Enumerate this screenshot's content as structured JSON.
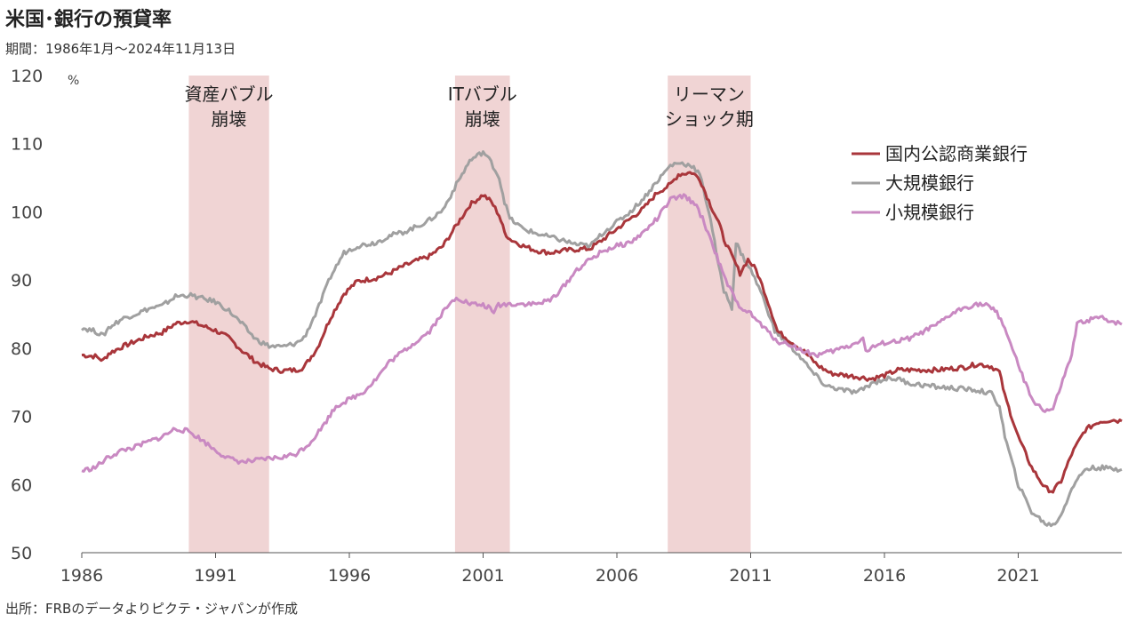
{
  "header": {
    "title": "米国･銀行の預貸率",
    "subtitle": "期間：1986年1月～2024年11月13日"
  },
  "footer": {
    "source": "出所：FRBのデータよりピクテ・ジャパンが作成"
  },
  "chart_data": {
    "type": "line",
    "title": "米国･銀行の預貸率",
    "ylabel": "%",
    "xlim": [
      1986.0,
      2024.87
    ],
    "ylim": [
      50,
      120
    ],
    "yticks": [
      50,
      60,
      70,
      80,
      90,
      100,
      110,
      120
    ],
    "xticks": [
      1986,
      1991,
      1996,
      2001,
      2006,
      2011,
      2016,
      2021
    ],
    "grid": false,
    "legend_position": "top-right",
    "shaded_periods": [
      {
        "label_lines": [
          "資産バブル",
          "崩壊"
        ],
        "start": 1990.0,
        "end": 1993.0,
        "color": "#f0d4d4"
      },
      {
        "label_lines": [
          "ITバブル",
          "崩壊"
        ],
        "start": 1999.95,
        "end": 2002.0,
        "color": "#f0d4d4"
      },
      {
        "label_lines": [
          "リーマン",
          "ショック期"
        ],
        "start": 2007.9,
        "end": 2011.0,
        "color": "#f0d4d4"
      }
    ],
    "series": [
      {
        "name": "国内公認商業銀行",
        "color": "#a9363b",
        "points": [
          [
            1986.0,
            79
          ],
          [
            1986.5,
            78.8
          ],
          [
            1986.8,
            78.2
          ],
          [
            1987.0,
            79.2
          ],
          [
            1987.5,
            80.2
          ],
          [
            1988.0,
            81
          ],
          [
            1988.5,
            81.8
          ],
          [
            1989.0,
            82.3
          ],
          [
            1989.5,
            83.6
          ],
          [
            1990.0,
            84
          ],
          [
            1990.5,
            83.3
          ],
          [
            1991.0,
            82.6
          ],
          [
            1991.5,
            81.5
          ],
          [
            1992.0,
            79.6
          ],
          [
            1992.5,
            78
          ],
          [
            1993.0,
            77
          ],
          [
            1993.5,
            76.7
          ],
          [
            1994.0,
            76.8
          ],
          [
            1994.3,
            77.2
          ],
          [
            1994.8,
            80
          ],
          [
            1995.3,
            84.5
          ],
          [
            1995.8,
            88
          ],
          [
            1996.3,
            89.8
          ],
          [
            1997.0,
            90.3
          ],
          [
            1997.5,
            91
          ],
          [
            1998.0,
            92
          ],
          [
            1998.5,
            92.8
          ],
          [
            1999.0,
            93.5
          ],
          [
            1999.5,
            95
          ],
          [
            2000.0,
            98
          ],
          [
            2000.5,
            101
          ],
          [
            2001.0,
            102.5
          ],
          [
            2001.3,
            101.5
          ],
          [
            2001.6,
            99.5
          ],
          [
            2001.8,
            97
          ],
          [
            2002.0,
            96
          ],
          [
            2002.5,
            95
          ],
          [
            2003.0,
            94.3
          ],
          [
            2003.5,
            94
          ],
          [
            2004.0,
            94.3
          ],
          [
            2004.5,
            94.5
          ],
          [
            2005.0,
            94.6
          ],
          [
            2005.5,
            96
          ],
          [
            2006.0,
            97.5
          ],
          [
            2006.5,
            99
          ],
          [
            2007.0,
            100.5
          ],
          [
            2007.5,
            102.8
          ],
          [
            2008.0,
            104
          ],
          [
            2008.3,
            105.5
          ],
          [
            2008.8,
            105.8
          ],
          [
            2009.1,
            104.8
          ],
          [
            2009.5,
            101
          ],
          [
            2009.8,
            98.5
          ],
          [
            2010.0,
            96
          ],
          [
            2010.3,
            93.5
          ],
          [
            2010.6,
            91
          ],
          [
            2010.9,
            93
          ],
          [
            2011.2,
            91.5
          ],
          [
            2011.5,
            88.5
          ],
          [
            2011.8,
            85
          ],
          [
            2012.0,
            82.5
          ],
          [
            2012.5,
            81
          ],
          [
            2013.0,
            79.5
          ],
          [
            2013.5,
            77.5
          ],
          [
            2014.0,
            76.3
          ],
          [
            2015.0,
            75.8
          ],
          [
            2015.5,
            75.5
          ],
          [
            2016.0,
            76
          ],
          [
            2016.5,
            76.8
          ],
          [
            2017.0,
            76.8
          ],
          [
            2018.0,
            76.8
          ],
          [
            2019.0,
            77.2
          ],
          [
            2019.5,
            77.7
          ],
          [
            2020.0,
            77.3
          ],
          [
            2020.3,
            76.5
          ],
          [
            2020.5,
            73
          ],
          [
            2021.0,
            67
          ],
          [
            2021.5,
            62.5
          ],
          [
            2022.0,
            59.5
          ],
          [
            2022.3,
            59
          ],
          [
            2022.6,
            60.5
          ],
          [
            2023.0,
            64.5
          ],
          [
            2023.5,
            68
          ],
          [
            2024.0,
            69.2
          ],
          [
            2024.5,
            69.5
          ],
          [
            2024.87,
            69.3
          ]
        ]
      },
      {
        "name": "大規模銀行",
        "color": "#a0a0a0",
        "points": [
          [
            1986.0,
            83
          ],
          [
            1986.5,
            82.5
          ],
          [
            1986.8,
            81.8
          ],
          [
            1987.0,
            83
          ],
          [
            1987.5,
            84.3
          ],
          [
            1988.0,
            85
          ],
          [
            1988.5,
            85.8
          ],
          [
            1989.0,
            86.2
          ],
          [
            1989.5,
            87.6
          ],
          [
            1990.0,
            87.8
          ],
          [
            1990.5,
            87.3
          ],
          [
            1991.0,
            86.8
          ],
          [
            1991.5,
            85.5
          ],
          [
            1992.0,
            83.5
          ],
          [
            1992.5,
            81.3
          ],
          [
            1993.0,
            80.3
          ],
          [
            1993.5,
            80.2
          ],
          [
            1994.0,
            80.7
          ],
          [
            1994.3,
            81.5
          ],
          [
            1994.8,
            85.5
          ],
          [
            1995.3,
            90.5
          ],
          [
            1995.8,
            94
          ],
          [
            1996.3,
            95
          ],
          [
            1997.0,
            95.5
          ],
          [
            1997.5,
            96.5
          ],
          [
            1998.0,
            97
          ],
          [
            1998.5,
            97.8
          ],
          [
            1999.0,
            98.8
          ],
          [
            1999.5,
            100.3
          ],
          [
            2000.0,
            104
          ],
          [
            2000.5,
            107.5
          ],
          [
            2001.0,
            108.8
          ],
          [
            2001.3,
            107.3
          ],
          [
            2001.6,
            105
          ],
          [
            2001.8,
            101.5
          ],
          [
            2002.0,
            99
          ],
          [
            2002.5,
            97.5
          ],
          [
            2003.0,
            96.8
          ],
          [
            2003.5,
            96.3
          ],
          [
            2004.0,
            95.8
          ],
          [
            2004.5,
            95.2
          ],
          [
            2005.0,
            95
          ],
          [
            2005.5,
            97
          ],
          [
            2006.0,
            98.5
          ],
          [
            2006.5,
            100
          ],
          [
            2007.0,
            102
          ],
          [
            2007.5,
            104.5
          ],
          [
            2008.0,
            106.8
          ],
          [
            2008.3,
            107.2
          ],
          [
            2008.8,
            106.8
          ],
          [
            2009.1,
            105.5
          ],
          [
            2009.5,
            99
          ],
          [
            2009.8,
            92
          ],
          [
            2010.0,
            88.5
          ],
          [
            2010.3,
            86
          ],
          [
            2010.45,
            95.5
          ],
          [
            2010.7,
            93.5
          ],
          [
            2011.0,
            91.5
          ],
          [
            2011.3,
            89
          ],
          [
            2011.6,
            86
          ],
          [
            2011.9,
            82.5
          ],
          [
            2012.3,
            81
          ],
          [
            2012.8,
            79
          ],
          [
            2013.3,
            76.5
          ],
          [
            2013.8,
            74.5
          ],
          [
            2014.5,
            73.8
          ],
          [
            2015.0,
            73.5
          ],
          [
            2015.5,
            74.8
          ],
          [
            2016.0,
            75.5
          ],
          [
            2016.5,
            75.5
          ],
          [
            2017.0,
            74.8
          ],
          [
            2018.0,
            74.3
          ],
          [
            2019.0,
            74
          ],
          [
            2019.5,
            73.8
          ],
          [
            2020.0,
            73.3
          ],
          [
            2020.3,
            71.5
          ],
          [
            2020.5,
            67
          ],
          [
            2021.0,
            60
          ],
          [
            2021.5,
            56
          ],
          [
            2022.0,
            54.3
          ],
          [
            2022.3,
            54
          ],
          [
            2022.6,
            55.5
          ],
          [
            2023.0,
            59.5
          ],
          [
            2023.5,
            62.3
          ],
          [
            2024.0,
            62.5
          ],
          [
            2024.5,
            62.3
          ],
          [
            2024.87,
            62.2
          ]
        ]
      },
      {
        "name": "小規模銀行",
        "color": "#c989c2",
        "points": [
          [
            1986.0,
            62
          ],
          [
            1986.5,
            62.5
          ],
          [
            1987.0,
            64
          ],
          [
            1987.5,
            65
          ],
          [
            1988.0,
            65.5
          ],
          [
            1988.5,
            66.3
          ],
          [
            1989.0,
            67
          ],
          [
            1989.5,
            68.2
          ],
          [
            1990.0,
            67.8
          ],
          [
            1990.5,
            66.5
          ],
          [
            1991.0,
            65
          ],
          [
            1991.5,
            63.8
          ],
          [
            1992.0,
            63.3
          ],
          [
            1992.5,
            63.5
          ],
          [
            1993.0,
            63.8
          ],
          [
            1993.5,
            64
          ],
          [
            1994.0,
            64.5
          ],
          [
            1994.5,
            66
          ],
          [
            1995.0,
            68.5
          ],
          [
            1995.5,
            71.5
          ],
          [
            1996.0,
            72.5
          ],
          [
            1996.5,
            73.5
          ],
          [
            1997.0,
            75.5
          ],
          [
            1997.5,
            78
          ],
          [
            1998.0,
            79.5
          ],
          [
            1998.5,
            81
          ],
          [
            1999.0,
            82.5
          ],
          [
            1999.5,
            85.3
          ],
          [
            2000.0,
            87.5
          ],
          [
            2000.5,
            86.5
          ],
          [
            2001.0,
            86.3
          ],
          [
            2001.2,
            86
          ],
          [
            2001.4,
            85
          ],
          [
            2001.5,
            86.3
          ],
          [
            2002.0,
            86.5
          ],
          [
            2002.5,
            86.5
          ],
          [
            2003.0,
            86.5
          ],
          [
            2003.5,
            87
          ],
          [
            2004.0,
            89
          ],
          [
            2004.5,
            91.5
          ],
          [
            2005.0,
            93
          ],
          [
            2005.5,
            94.3
          ],
          [
            2006.0,
            95
          ],
          [
            2006.5,
            95.5
          ],
          [
            2007.0,
            97
          ],
          [
            2007.5,
            99
          ],
          [
            2008.0,
            101.8
          ],
          [
            2008.5,
            102.3
          ],
          [
            2008.9,
            101.3
          ],
          [
            2009.2,
            99
          ],
          [
            2009.6,
            95
          ],
          [
            2010.0,
            90.5
          ],
          [
            2010.5,
            86.5
          ],
          [
            2011.0,
            85
          ],
          [
            2011.5,
            83
          ],
          [
            2012.0,
            81
          ],
          [
            2012.5,
            80.5
          ],
          [
            2013.0,
            79.5
          ],
          [
            2013.5,
            79
          ],
          [
            2014.0,
            79.5
          ],
          [
            2014.8,
            80.5
          ],
          [
            2015.2,
            81.5
          ],
          [
            2015.3,
            79.5
          ],
          [
            2015.5,
            80
          ],
          [
            2016.0,
            80.8
          ],
          [
            2016.5,
            81
          ],
          [
            2017.0,
            81.5
          ],
          [
            2017.5,
            82.5
          ],
          [
            2018.0,
            83.5
          ],
          [
            2018.5,
            85
          ],
          [
            2019.0,
            86
          ],
          [
            2019.5,
            86.5
          ],
          [
            2019.8,
            86.3
          ],
          [
            2020.2,
            85.3
          ],
          [
            2020.5,
            83
          ],
          [
            2021.0,
            77.5
          ],
          [
            2021.5,
            72.5
          ],
          [
            2022.0,
            70.8
          ],
          [
            2022.3,
            71
          ],
          [
            2022.6,
            74.5
          ],
          [
            2023.0,
            79
          ],
          [
            2023.2,
            83.5
          ],
          [
            2023.5,
            84
          ],
          [
            2024.0,
            84.5
          ],
          [
            2024.5,
            84
          ],
          [
            2024.87,
            83.5
          ]
        ]
      }
    ]
  }
}
